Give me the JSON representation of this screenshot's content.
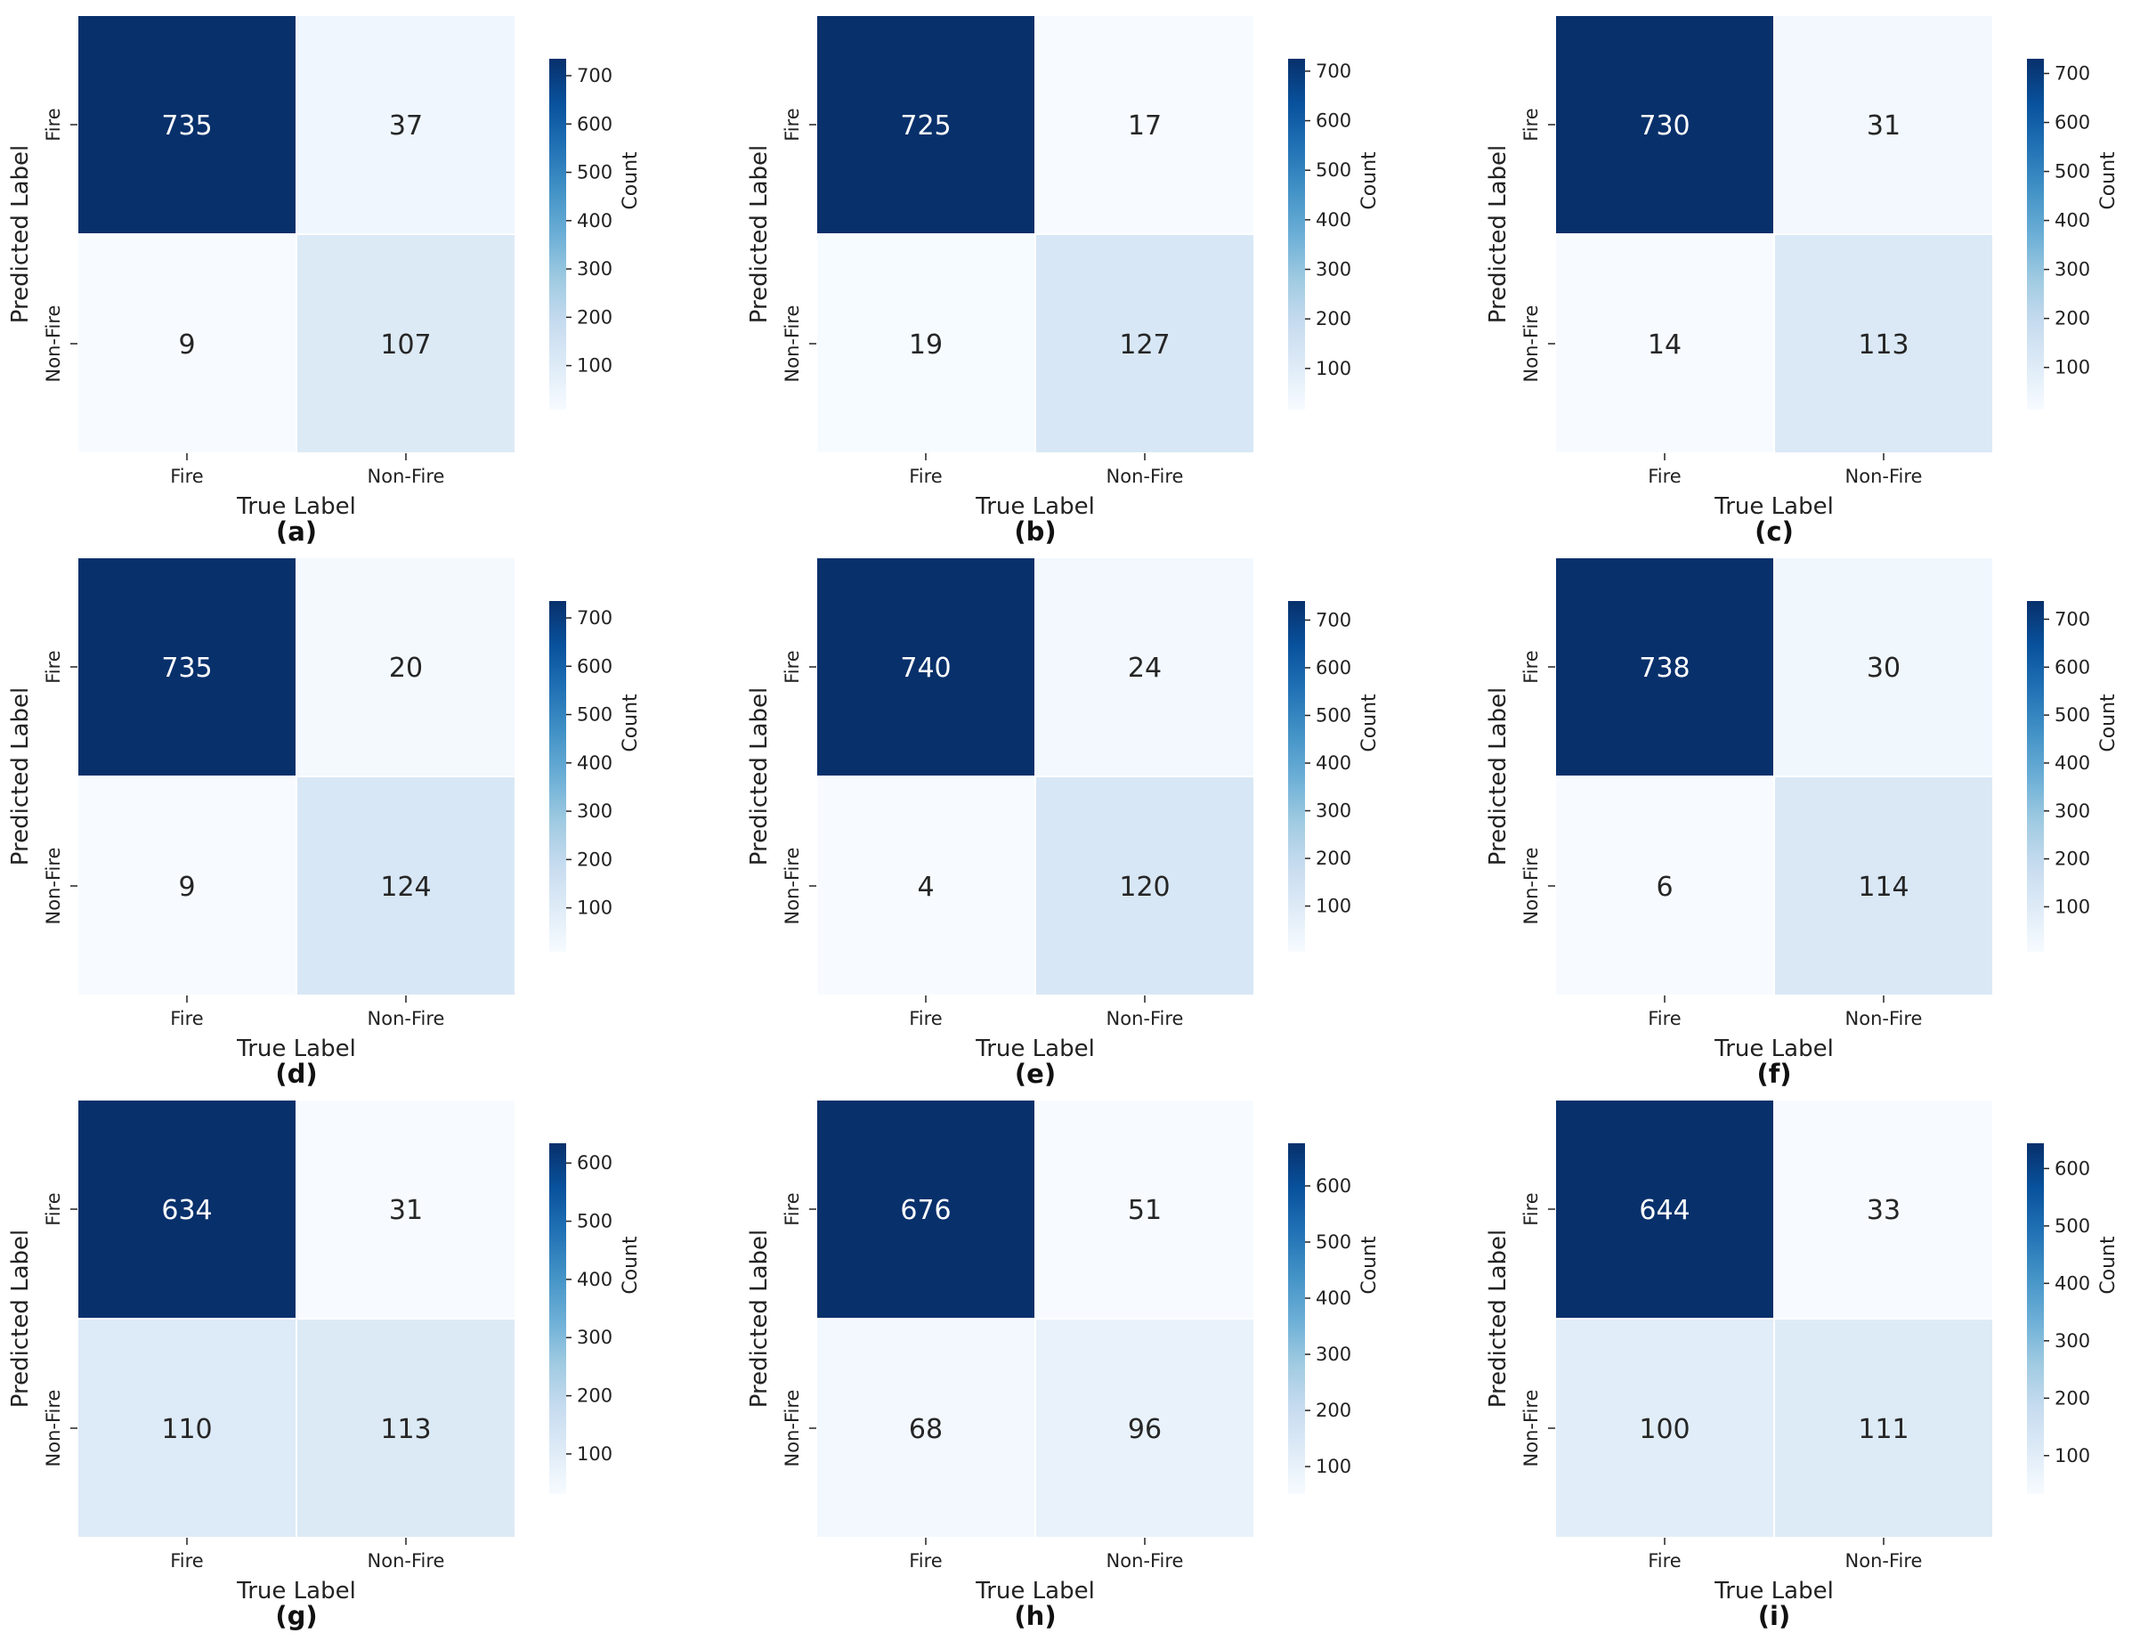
{
  "chart_data": [
    {
      "type": "heatmap",
      "panel_label": "(a)",
      "xlabel": "True Label",
      "ylabel": "Predicted Label",
      "x_categories": [
        "Fire",
        "Non-Fire"
      ],
      "y_categories": [
        "Fire",
        "Non-Fire"
      ],
      "values": [
        [
          735,
          37
        ],
        [
          9,
          107
        ]
      ],
      "colorbar": {
        "label": "Count",
        "ticks": [
          100,
          200,
          300,
          400,
          500,
          600,
          700
        ],
        "range": [
          9,
          735
        ]
      }
    },
    {
      "type": "heatmap",
      "panel_label": "(b)",
      "xlabel": "True Label",
      "ylabel": "Predicted Label",
      "x_categories": [
        "Fire",
        "Non-Fire"
      ],
      "y_categories": [
        "Fire",
        "Non-Fire"
      ],
      "values": [
        [
          725,
          17
        ],
        [
          19,
          127
        ]
      ],
      "colorbar": {
        "label": "Count",
        "ticks": [
          100,
          200,
          300,
          400,
          500,
          600,
          700
        ],
        "range": [
          17,
          725
        ]
      }
    },
    {
      "type": "heatmap",
      "panel_label": "(c)",
      "xlabel": "True Label",
      "ylabel": "Predicted Label",
      "x_categories": [
        "Fire",
        "Non-Fire"
      ],
      "y_categories": [
        "Fire",
        "Non-Fire"
      ],
      "values": [
        [
          730,
          31
        ],
        [
          14,
          113
        ]
      ],
      "colorbar": {
        "label": "Count",
        "ticks": [
          100,
          200,
          300,
          400,
          500,
          600,
          700
        ],
        "range": [
          14,
          730
        ]
      }
    },
    {
      "type": "heatmap",
      "panel_label": "(d)",
      "xlabel": "True Label",
      "ylabel": "Predicted Label",
      "x_categories": [
        "Fire",
        "Non-Fire"
      ],
      "y_categories": [
        "Fire",
        "Non-Fire"
      ],
      "values": [
        [
          735,
          20
        ],
        [
          9,
          124
        ]
      ],
      "colorbar": {
        "label": "Count",
        "ticks": [
          100,
          200,
          300,
          400,
          500,
          600,
          700
        ],
        "range": [
          9,
          735
        ]
      }
    },
    {
      "type": "heatmap",
      "panel_label": "(e)",
      "xlabel": "True Label",
      "ylabel": "Predicted Label",
      "x_categories": [
        "Fire",
        "Non-Fire"
      ],
      "y_categories": [
        "Fire",
        "Non-Fire"
      ],
      "values": [
        [
          740,
          24
        ],
        [
          4,
          120
        ]
      ],
      "colorbar": {
        "label": "Count",
        "ticks": [
          100,
          200,
          300,
          400,
          500,
          600,
          700
        ],
        "range": [
          4,
          740
        ]
      }
    },
    {
      "type": "heatmap",
      "panel_label": "(f)",
      "xlabel": "True Label",
      "ylabel": "Predicted Label",
      "x_categories": [
        "Fire",
        "Non-Fire"
      ],
      "y_categories": [
        "Fire",
        "Non-Fire"
      ],
      "values": [
        [
          738,
          30
        ],
        [
          6,
          114
        ]
      ],
      "colorbar": {
        "label": "Count",
        "ticks": [
          100,
          200,
          300,
          400,
          500,
          600,
          700
        ],
        "range": [
          6,
          738
        ]
      }
    },
    {
      "type": "heatmap",
      "panel_label": "(g)",
      "xlabel": "True Label",
      "ylabel": "Predicted Label",
      "x_categories": [
        "Fire",
        "Non-Fire"
      ],
      "y_categories": [
        "Fire",
        "Non-Fire"
      ],
      "values": [
        [
          634,
          31
        ],
        [
          110,
          113
        ]
      ],
      "colorbar": {
        "label": "Count",
        "ticks": [
          100,
          200,
          300,
          400,
          500,
          600
        ],
        "range": [
          31,
          634
        ]
      }
    },
    {
      "type": "heatmap",
      "panel_label": "(h)",
      "xlabel": "True Label",
      "ylabel": "Predicted Label",
      "x_categories": [
        "Fire",
        "Non-Fire"
      ],
      "y_categories": [
        "Fire",
        "Non-Fire"
      ],
      "values": [
        [
          676,
          51
        ],
        [
          68,
          96
        ]
      ],
      "colorbar": {
        "label": "Count",
        "ticks": [
          100,
          200,
          300,
          400,
          500,
          600
        ],
        "range": [
          51,
          676
        ]
      }
    },
    {
      "type": "heatmap",
      "panel_label": "(i)",
      "xlabel": "True Label",
      "ylabel": "Predicted Label",
      "x_categories": [
        "Fire",
        "Non-Fire"
      ],
      "y_categories": [
        "Fire",
        "Non-Fire"
      ],
      "values": [
        [
          644,
          33
        ],
        [
          100,
          111
        ]
      ],
      "colorbar": {
        "label": "Count",
        "ticks": [
          100,
          200,
          300,
          400,
          500,
          600
        ],
        "range": [
          33,
          644
        ]
      }
    }
  ],
  "colors": {
    "cmap_low": "#f7fbff",
    "cmap_mid": "#6baed6",
    "cmap_high": "#08306b",
    "text_dark": "#262626",
    "text_light": "#ffffff",
    "axis_text": "#222222"
  }
}
